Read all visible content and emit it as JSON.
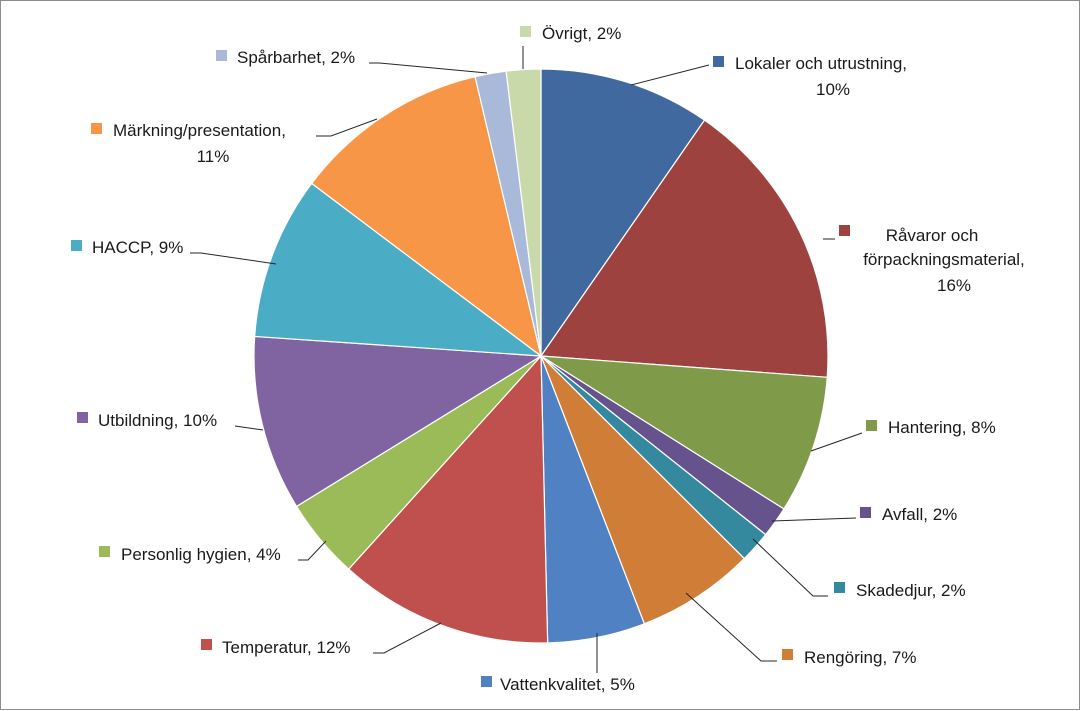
{
  "chart_data": {
    "type": "pie",
    "title": "",
    "slices": [
      {
        "label": "Lokaler och utrustning",
        "value": 10,
        "display": [
          "Lokaler och utrustning,",
          "10%"
        ],
        "color": "#4069A0"
      },
      {
        "label": "Råvaror och förpackningsmaterial",
        "value": 16,
        "display": [
          "Råvaror och",
          "förpackningsmaterial,",
          "16%"
        ],
        "color": "#9E4240"
      },
      {
        "label": "Hantering",
        "value": 8,
        "display": [
          "Hantering, 8%"
        ],
        "color": "#7F9A48"
      },
      {
        "label": "Avfall",
        "value": 2,
        "display": [
          "Avfall, 2%"
        ],
        "color": "#66528C"
      },
      {
        "label": "Skadedjur",
        "value": 2,
        "display": [
          "Skadedjur, 2%"
        ],
        "color": "#34899E"
      },
      {
        "label": "Rengöring",
        "value": 7,
        "display": [
          "Rengöring, 7%"
        ],
        "color": "#D07E37"
      },
      {
        "label": "Vattenkvalitet",
        "value": 5,
        "display": [
          "Vattenkvalitet, 5%"
        ],
        "color": "#5081C3"
      },
      {
        "label": "Temperatur",
        "value": 12,
        "display": [
          "Temperatur, 12%"
        ],
        "color": "#C0504D"
      },
      {
        "label": "Personlig hygien",
        "value": 4,
        "display": [
          "Personlig hygien, 4%"
        ],
        "color": "#9BBB59"
      },
      {
        "label": "Utbildning",
        "value": 10,
        "display": [
          "Utbildning, 10%"
        ],
        "color": "#8064A2"
      },
      {
        "label": "HACCP",
        "value": 9,
        "display": [
          "HACCP, 9%"
        ],
        "color": "#4BACC6"
      },
      {
        "label": "Märkning/presentation",
        "value": 11,
        "display": [
          "Märkning/presentation,",
          "11%"
        ],
        "color": "#F79646"
      },
      {
        "label": "Spårbarhet",
        "value": 2,
        "display": [
          "Spårbarhet, 2%"
        ],
        "color": "#A9B9D9"
      },
      {
        "label": "Övrigt",
        "value": 2,
        "display": [
          "Övrigt, 2%"
        ],
        "color": "#C9D9A9"
      }
    ],
    "legend": "none",
    "data_labels": "category name and percentage, outside with leader lines"
  }
}
